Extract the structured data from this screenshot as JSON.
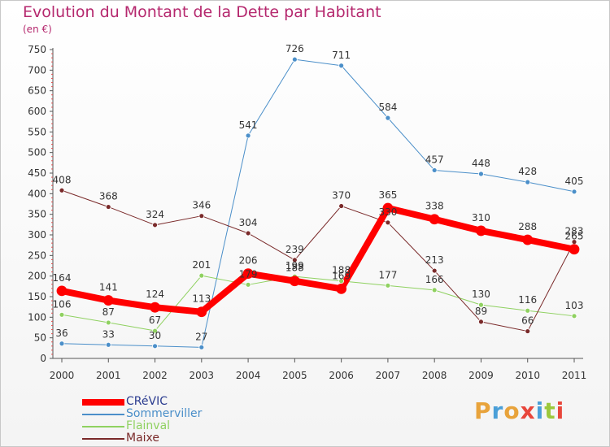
{
  "header": {
    "title": "Evolution du Montant de la Dette par Habitant",
    "unit": "(en €)"
  },
  "logo": {
    "text": "Proxiti",
    "colors": [
      "#e8a33b",
      "#4a9fd8",
      "#e8a33b",
      "#e8463b",
      "#4a9fd8",
      "#9cc83c",
      "#e8463b"
    ]
  },
  "chart_data": {
    "type": "line",
    "categories": [
      "2000",
      "2001",
      "2002",
      "2003",
      "2004",
      "2005",
      "2006",
      "2007",
      "2008",
      "2009",
      "2010",
      "2011"
    ],
    "ylim": [
      0,
      750
    ],
    "yticks": [
      "0",
      "50",
      "100",
      "150",
      "200",
      "250",
      "300",
      "350",
      "400",
      "450",
      "500",
      "550",
      "600",
      "650",
      "700",
      "750"
    ],
    "grid": false,
    "legend_position": "bottom-left",
    "series": [
      {
        "name": "Sommerviller",
        "color": "#4b8fc9",
        "width": 1,
        "labels_below": false,
        "values": [
          36,
          33,
          30,
          27,
          541,
          726,
          711,
          584,
          457,
          448,
          428,
          405
        ]
      },
      {
        "name": "Flainval",
        "color": "#8fd160",
        "width": 1,
        "labels_below": false,
        "values": [
          106,
          87,
          67,
          201,
          179,
          199,
          188,
          177,
          166,
          130,
          116,
          103
        ]
      },
      {
        "name": "Maixe",
        "color": "#7a2a2a",
        "width": 1,
        "labels_below": false,
        "values": [
          408,
          368,
          324,
          346,
          304,
          239,
          370,
          330,
          213,
          89,
          66,
          283
        ]
      },
      {
        "name": "CRéVIC",
        "color": "#ff0000",
        "width": 8,
        "labels_below": false,
        "values": [
          164,
          141,
          124,
          113,
          206,
          188,
          169,
          365,
          338,
          310,
          288,
          265
        ]
      }
    ],
    "value_labels": [
      [
        "36",
        "33",
        "30",
        "27",
        "541",
        "726",
        "711",
        "584",
        "457",
        "448",
        "428",
        "405"
      ],
      [
        "106",
        "87",
        "67",
        "201",
        "179",
        "199",
        "188",
        "177",
        "166",
        "130",
        "116",
        "103"
      ],
      [
        "408",
        "368",
        "324",
        "346",
        "304",
        "239",
        "370",
        "330",
        "213",
        "89",
        "66",
        "283"
      ],
      [
        "164",
        "141",
        "124",
        "113",
        "206",
        "188",
        "169",
        "365",
        "338",
        "310",
        "288",
        "265"
      ]
    ]
  },
  "legend": {
    "items": [
      {
        "label": "CRéVIC",
        "color": "#ff0000",
        "width": 8
      },
      {
        "label": "Sommerviller",
        "color": "#4b8fc9",
        "width": 2
      },
      {
        "label": "Flainval",
        "color": "#8fd160",
        "width": 2
      },
      {
        "label": "Maixe",
        "color": "#7a2a2a",
        "width": 2
      }
    ]
  }
}
